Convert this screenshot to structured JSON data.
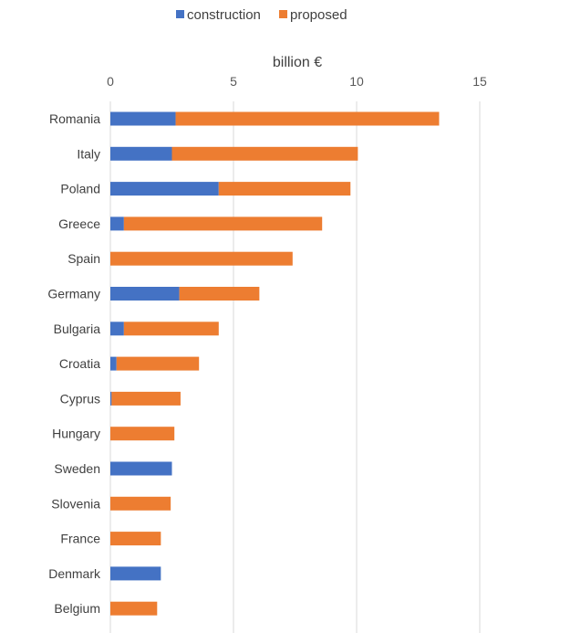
{
  "chart_data": {
    "type": "bar",
    "orientation": "horizontal",
    "stacked": true,
    "title": "",
    "xlabel": "billion €",
    "ylabel": "",
    "xlim": [
      0,
      15
    ],
    "x_ticks": [
      "0",
      "5",
      "10",
      "15"
    ],
    "grid": true,
    "legend_position": "top",
    "categories": [
      "Romania",
      "Italy",
      "Poland",
      "Greece",
      "Spain",
      "Germany",
      "Bulgaria",
      "Croatia",
      "Cyprus",
      "Hungary",
      "Sweden",
      "Slovenia",
      "France",
      "Denmark",
      "Belgium"
    ],
    "series": [
      {
        "name": "construction",
        "color": "#4472C4",
        "values": [
          2.65,
          2.5,
          4.4,
          0.55,
          0,
          2.8,
          0.55,
          0.25,
          0.05,
          0,
          2.5,
          0,
          0,
          2.05,
          0
        ]
      },
      {
        "name": "proposed",
        "color": "#ED7D31",
        "values": [
          10.7,
          7.55,
          5.35,
          8.05,
          7.4,
          3.25,
          3.85,
          3.35,
          2.8,
          2.6,
          0,
          2.45,
          2.05,
          0,
          1.9
        ]
      }
    ]
  }
}
